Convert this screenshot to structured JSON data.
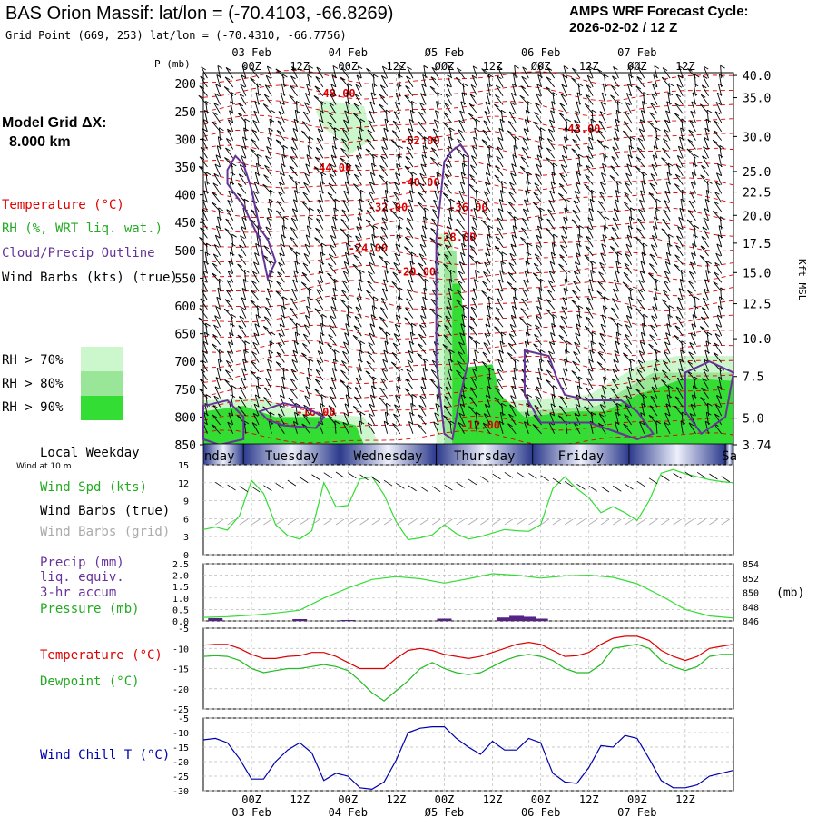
{
  "header": {
    "title": "BAS Orion Massif:  lat/lon = (-70.4103, -66.8269)",
    "subtitle": "Grid Point (669, 253) lat/lon = (-70.4310, -66.7756)",
    "cycle_title": "AMPS WRF Forecast Cycle:",
    "cycle_value": "2026-02-02 / 12  Z"
  },
  "sidebar": {
    "model_grid_label": "Model Grid ΔX:",
    "model_grid_value": "8.000 km",
    "legend_temperature": "Temperature (°C)",
    "legend_rh": "RH (%, WRT liq. wat.)",
    "legend_cloud": "Cloud/Precip Outline",
    "legend_wind": "Wind Barbs (kts) (true)",
    "rh_levels": [
      {
        "label": "RH > 70%",
        "color": "#ccf7cc"
      },
      {
        "label": "RH > 80%",
        "color": "#99e699"
      },
      {
        "label": "RH > 90%",
        "color": "#33dd33"
      }
    ]
  },
  "colors": {
    "temperature": "#dd0000",
    "rh": "#33dd33",
    "cloud": "#663399",
    "dewpoint": "#22bb22",
    "windchill": "#0000aa",
    "precip": "#552288",
    "wind_grid": "#aaaaaa"
  },
  "time_axis": {
    "top_dates": [
      "03 Feb",
      "04 Feb",
      "Ø5 Feb",
      "06 Feb",
      "07 Feb"
    ],
    "top_hours": [
      "00Z",
      "12Z",
      "00Z",
      "12Z",
      "ØØZ",
      "12Z",
      "ØØZ",
      "12Z",
      "ØØZ",
      "12Z"
    ],
    "bottom_hours": [
      "00Z",
      "12Z",
      "00Z",
      "12Z",
      "00Z",
      "12Z",
      "00Z",
      "12Z",
      "00Z",
      "12Z"
    ],
    "bottom_dates": [
      "03 Feb",
      "04 Feb",
      "Ø5 Feb",
      "06 Feb",
      "07 Feb"
    ],
    "hours_from_start": [
      12,
      24,
      36,
      48,
      60,
      72,
      84,
      96,
      108,
      120
    ],
    "weekday_title": "Local Weekday",
    "weekdays": [
      "nday",
      "Tuesday",
      "Wednesday",
      "Thursday",
      "Friday",
      "Sa"
    ]
  },
  "cross_section": {
    "y_unit_label": "P (mb)",
    "pressure_ticks": [
      200,
      250,
      300,
      350,
      400,
      450,
      500,
      550,
      600,
      650,
      700,
      750,
      800,
      850
    ],
    "right_axis_label": "Kft MSL",
    "height_ticks": [
      {
        "label": "40.0",
        "p": 185
      },
      {
        "label": "35.0",
        "p": 225
      },
      {
        "label": "30.0",
        "p": 295
      },
      {
        "label": "25.0",
        "p": 358
      },
      {
        "label": "22.5",
        "p": 395
      },
      {
        "label": "20.0",
        "p": 437
      },
      {
        "label": "17.5",
        "p": 487
      },
      {
        "label": "15.0",
        "p": 540
      },
      {
        "label": "12.5",
        "p": 596
      },
      {
        "label": "10.0",
        "p": 659
      },
      {
        "label": "7.5",
        "p": 727
      },
      {
        "label": "5.0",
        "p": 802
      },
      {
        "label": "3.74",
        "p": 850
      }
    ],
    "temperature_labels": [
      {
        "text": "-48.00",
        "hour": 33,
        "p": 224
      },
      {
        "text": "-48.00",
        "hour": 94,
        "p": 288
      },
      {
        "text": "-52.00",
        "hour": 54,
        "p": 309
      },
      {
        "text": "-44.00",
        "hour": 32,
        "p": 358
      },
      {
        "text": "-40.00",
        "hour": 54,
        "p": 384
      },
      {
        "text": "-32.00",
        "hour": 46,
        "p": 429
      },
      {
        "text": "-36.00",
        "hour": 66,
        "p": 429
      },
      {
        "text": "-28.00",
        "hour": 63,
        "p": 483
      },
      {
        "text": "-24.00",
        "hour": 41,
        "p": 503
      },
      {
        "text": "-20.00",
        "hour": 53,
        "p": 545
      },
      {
        "text": "-16.00",
        "hour": 28,
        "p": 798
      },
      {
        "text": "-12.00",
        "hour": 69,
        "p": 821
      }
    ]
  },
  "wind_panel": {
    "title_note": "Wind at 10 m",
    "label_speed": "Wind Spd (kts)",
    "label_barbs_true": "Wind Barbs (true)",
    "label_barbs_grid": "Wind Barbs (grid)",
    "ticks": [
      0,
      3,
      6,
      9,
      12,
      15
    ]
  },
  "precip_panel": {
    "label_precip": "Precip (mm)",
    "label_liq": "liq. equiv.",
    "label_accum": "3-hr accum",
    "label_pressure": "Pressure (mb)",
    "left_ticks": [
      "0.0",
      "0.5",
      "1.0",
      "1.5",
      "2.0",
      "2.5"
    ],
    "right_ticks": [
      "846",
      "848",
      "850",
      "852",
      "854"
    ],
    "right_unit": "(mb)"
  },
  "temp_panel": {
    "label_temperature": "Temperature (°C)",
    "label_dewpoint": "Dewpoint (°C)",
    "ticks": [
      -5,
      -10,
      -15,
      -20,
      -25
    ]
  },
  "windchill_panel": {
    "label": "Wind Chill T (°C)",
    "ticks": [
      -5,
      -10,
      -15,
      -20,
      -25,
      -30
    ]
  },
  "chart_data": [
    {
      "type": "line",
      "title": "Wind Spd (kts)",
      "x_unit": "forecast hour",
      "x": [
        0,
        3,
        6,
        9,
        12,
        15,
        18,
        21,
        24,
        27,
        30,
        33,
        36,
        39,
        42,
        45,
        48,
        51,
        54,
        57,
        60,
        63,
        66,
        69,
        72,
        75,
        78,
        81,
        84,
        87,
        90,
        93,
        96,
        99,
        102,
        105,
        108,
        111,
        114,
        117,
        120,
        123,
        126,
        129,
        132
      ],
      "series": [
        {
          "name": "Wind Spd (kts)",
          "values": [
            4.2,
            4.6,
            4.1,
            6.5,
            12.4,
            10.2,
            5.0,
            3.2,
            2.6,
            4.0,
            12.0,
            8.0,
            8.2,
            12.6,
            13.0,
            10.0,
            5.5,
            2.5,
            2.8,
            3.3,
            5.0,
            3.5,
            2.6,
            3.0,
            3.6,
            4.2,
            4.0,
            3.9,
            5.0,
            11.0,
            13.0,
            11.0,
            9.5,
            7.0,
            8.0,
            7.0,
            5.7,
            9.0,
            13.6,
            14.2,
            13.5,
            13.0,
            12.5,
            12.2,
            12.0
          ]
        }
      ],
      "ylim": [
        0,
        15
      ]
    },
    {
      "type": "line",
      "title": "Pressure (mb)",
      "x_unit": "forecast hour",
      "x": [
        0,
        6,
        12,
        18,
        24,
        30,
        36,
        42,
        48,
        54,
        60,
        66,
        72,
        78,
        84,
        90,
        96,
        102,
        108,
        114,
        120,
        126,
        132
      ],
      "series": [
        {
          "name": "Pressure (mb)",
          "values": [
            846.5,
            846.6,
            846.8,
            847.1,
            847.5,
            849.2,
            850.6,
            851.8,
            852.2,
            851.9,
            851.3,
            851.9,
            852.6,
            852.4,
            852.0,
            852.3,
            852.4,
            852.1,
            851.2,
            849.5,
            847.6,
            846.7,
            846.4
          ]
        }
      ],
      "ylim": [
        846,
        854
      ]
    },
    {
      "type": "bar",
      "title": "Precip (mm)",
      "x_unit": "forecast hour",
      "x": [
        3,
        24,
        36,
        60,
        75,
        78,
        81,
        84
      ],
      "series": [
        {
          "name": "Precip (mm)",
          "values": [
            0.12,
            0.08,
            0.04,
            0.1,
            0.15,
            0.22,
            0.18,
            0.1
          ]
        }
      ],
      "ylim": [
        0,
        2.5
      ]
    },
    {
      "type": "line",
      "title": "Temperature / Dewpoint",
      "x_unit": "forecast hour",
      "x": [
        0,
        3,
        6,
        9,
        12,
        15,
        18,
        21,
        24,
        27,
        30,
        33,
        36,
        39,
        42,
        45,
        48,
        51,
        54,
        57,
        60,
        63,
        66,
        69,
        72,
        75,
        78,
        81,
        84,
        87,
        90,
        93,
        96,
        99,
        102,
        105,
        108,
        111,
        114,
        117,
        120,
        123,
        126,
        129,
        132
      ],
      "series": [
        {
          "name": "Temperature (°C)",
          "values": [
            -9.2,
            -9.0,
            -9.0,
            -10.0,
            -11.5,
            -12.5,
            -12.5,
            -12.0,
            -11.8,
            -11.0,
            -11.0,
            -12.0,
            -13.5,
            -15.0,
            -15.0,
            -15.0,
            -12.5,
            -10.5,
            -10.0,
            -10.5,
            -11.5,
            -12.0,
            -12.5,
            -12.0,
            -11.0,
            -10.0,
            -9.0,
            -8.5,
            -9.0,
            -10.5,
            -12.0,
            -11.8,
            -11.0,
            -9.0,
            -7.5,
            -7.0,
            -7.0,
            -8.0,
            -10.5,
            -12.0,
            -13.0,
            -12.0,
            -10.0,
            -9.5,
            -9.0
          ]
        },
        {
          "name": "Dewpoint (°C)",
          "values": [
            -12.0,
            -11.8,
            -12.0,
            -13.0,
            -15.0,
            -16.0,
            -15.5,
            -15.0,
            -15.0,
            -14.5,
            -14.0,
            -14.5,
            -15.5,
            -18.0,
            -21.0,
            -23.0,
            -20.5,
            -18.0,
            -15.0,
            -13.5,
            -15.0,
            -16.0,
            -16.5,
            -16.0,
            -14.5,
            -13.0,
            -12.0,
            -11.5,
            -12.0,
            -13.0,
            -15.0,
            -16.0,
            -16.0,
            -14.0,
            -10.0,
            -9.5,
            -9.0,
            -10.0,
            -13.0,
            -14.5,
            -15.5,
            -14.5,
            -12.0,
            -11.5,
            -11.5
          ]
        }
      ],
      "ylim": [
        -25,
        -5
      ]
    },
    {
      "type": "line",
      "title": "Wind Chill T (°C)",
      "x_unit": "forecast hour",
      "x": [
        0,
        3,
        6,
        9,
        12,
        15,
        18,
        21,
        24,
        27,
        30,
        33,
        36,
        39,
        42,
        45,
        48,
        51,
        54,
        57,
        60,
        63,
        66,
        69,
        72,
        75,
        78,
        81,
        84,
        87,
        90,
        93,
        96,
        99,
        102,
        105,
        108,
        111,
        114,
        117,
        120,
        123,
        126,
        129,
        132
      ],
      "series": [
        {
          "name": "Wind Chill T (°C)",
          "values": [
            -12.5,
            -12.0,
            -13.5,
            -19.0,
            -26.0,
            -26.0,
            -20.0,
            -16.0,
            -13.5,
            -17.0,
            -26.5,
            -24.0,
            -25.0,
            -29.0,
            -29.5,
            -27.0,
            -19.5,
            -10.0,
            -8.5,
            -8.0,
            -8.0,
            -12.0,
            -15.0,
            -17.5,
            -13.0,
            -16.0,
            -16.0,
            -12.0,
            -13.5,
            -24.0,
            -27.0,
            -27.5,
            -22.0,
            -14.5,
            -15.0,
            -11.0,
            -12.0,
            -19.0,
            -26.5,
            -29.0,
            -29.0,
            -28.0,
            -25.0,
            -24.0,
            -23.0
          ]
        }
      ],
      "ylim": [
        -30,
        -5
      ]
    }
  ]
}
